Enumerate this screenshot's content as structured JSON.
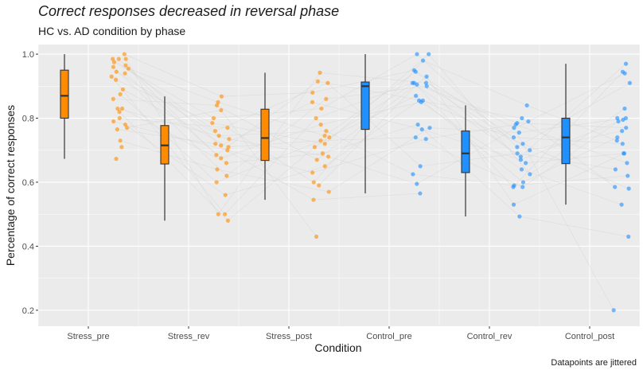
{
  "chart_data": {
    "type": "boxplot",
    "title": "Correct responses decreased in reversal phase",
    "subtitle": "HC vs. AD condition by phase",
    "caption": "Datapoints are jittered",
    "xlabel": "Condition",
    "ylabel": "Percentage of correct responses",
    "ylim": [
      0.15,
      1.03
    ],
    "yticks": [
      0.2,
      0.4,
      0.6,
      0.8,
      1.0
    ],
    "ytick_labels": [
      "0.2",
      "0.4",
      "0.6",
      "0.8",
      "1.0"
    ],
    "categories": [
      "Stress_pre",
      "Stress_rev",
      "Stress_post",
      "Control_pre",
      "Control_rev",
      "Control_post"
    ],
    "colors": {
      "stress": "#ff8c00",
      "control": "#1e90ff",
      "panel": "#ebebeb",
      "grid": "#ffffff",
      "box_line": "#333333",
      "connector": "#cfcfcf"
    },
    "boxes": [
      {
        "category": "Stress_pre",
        "group": "stress",
        "min": 0.673,
        "q1": 0.8,
        "median": 0.87,
        "q3": 0.95,
        "max": 1.0
      },
      {
        "category": "Stress_rev",
        "group": "stress",
        "min": 0.48,
        "q1": 0.657,
        "median": 0.715,
        "q3": 0.777,
        "max": 0.868
      },
      {
        "category": "Stress_post",
        "group": "stress",
        "min": 0.545,
        "q1": 0.668,
        "median": 0.738,
        "q3": 0.828,
        "max": 0.942
      },
      {
        "category": "Control_pre",
        "group": "control",
        "min": 0.565,
        "q1": 0.765,
        "median": 0.9,
        "q3": 0.913,
        "max": 1.0
      },
      {
        "category": "Control_rev",
        "group": "control",
        "min": 0.493,
        "q1": 0.63,
        "median": 0.69,
        "q3": 0.76,
        "max": 0.84
      },
      {
        "category": "Control_post",
        "group": "control",
        "min": 0.53,
        "q1": 0.658,
        "median": 0.74,
        "q3": 0.8,
        "max": 0.97
      }
    ],
    "points": [
      {
        "category": "Stress_pre",
        "group": "stress",
        "values": [
          1.0,
          0.985,
          0.985,
          0.985,
          0.975,
          0.965,
          0.96,
          0.955,
          0.945,
          0.94,
          0.93,
          0.92,
          0.89,
          0.875,
          0.86,
          0.83,
          0.83,
          0.82,
          0.8,
          0.79,
          0.78,
          0.77,
          0.765,
          0.73,
          0.71,
          0.673
        ]
      },
      {
        "category": "Stress_rev",
        "group": "stress",
        "values": [
          0.868,
          0.85,
          0.84,
          0.825,
          0.8,
          0.785,
          0.77,
          0.76,
          0.745,
          0.735,
          0.72,
          0.715,
          0.71,
          0.7,
          0.685,
          0.675,
          0.66,
          0.64,
          0.62,
          0.6,
          0.56,
          0.5,
          0.5,
          0.48
        ]
      },
      {
        "category": "Stress_post",
        "group": "stress",
        "values": [
          0.942,
          0.915,
          0.91,
          0.88,
          0.86,
          0.85,
          0.83,
          0.8,
          0.78,
          0.76,
          0.745,
          0.74,
          0.73,
          0.72,
          0.71,
          0.69,
          0.68,
          0.67,
          0.65,
          0.63,
          0.6,
          0.59,
          0.57,
          0.545,
          0.43
        ]
      },
      {
        "category": "Control_pre",
        "group": "control",
        "values": [
          1.0,
          1.0,
          0.98,
          0.95,
          0.945,
          0.93,
          0.91,
          0.91,
          0.91,
          0.905,
          0.9,
          0.87,
          0.855,
          0.855,
          0.85,
          0.78,
          0.77,
          0.765,
          0.74,
          0.735,
          0.65,
          0.625,
          0.595,
          0.565
        ]
      },
      {
        "category": "Control_rev",
        "group": "control",
        "values": [
          0.84,
          0.8,
          0.79,
          0.785,
          0.78,
          0.77,
          0.755,
          0.74,
          0.72,
          0.71,
          0.7,
          0.69,
          0.68,
          0.67,
          0.66,
          0.64,
          0.625,
          0.6,
          0.59,
          0.585,
          0.585,
          0.53,
          0.493
        ]
      },
      {
        "category": "Control_post",
        "group": "control",
        "values": [
          0.97,
          0.945,
          0.94,
          0.91,
          0.83,
          0.8,
          0.8,
          0.795,
          0.79,
          0.77,
          0.76,
          0.74,
          0.73,
          0.72,
          0.69,
          0.69,
          0.66,
          0.64,
          0.62,
          0.585,
          0.58,
          0.53,
          0.43,
          0.2
        ]
      }
    ]
  }
}
